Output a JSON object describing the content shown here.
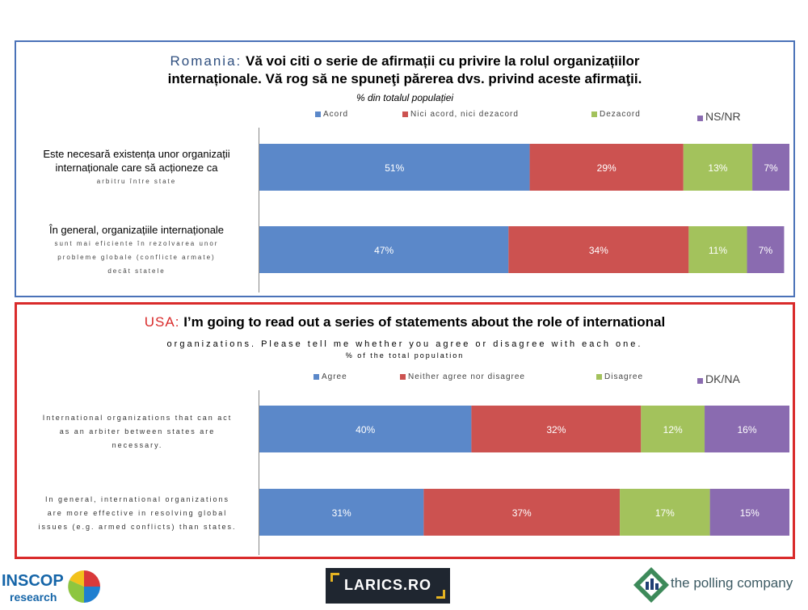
{
  "panels": [
    {
      "id": "ro",
      "title_country": "Romania:",
      "title_line1": "Vă voi citi o serie de afirmații cu privire la rolul organizațiilor",
      "title_line2": "internaționale. Vă rog să ne spuneţi părerea dvs. privind aceste afirmaţii.",
      "subtitle": "% din totalul populației",
      "legend": [
        "Acord",
        "Nici acord, nici dezacord",
        "Dezacord",
        "NS/NR"
      ],
      "categories": [
        [
          "Este necesară existența unor organizații",
          "internaționale care să acționeze ca",
          "arbitru între state"
        ],
        [
          "În general,  organizațiile internaționale",
          "sunt mai eficiente în rezolvarea unor",
          "probleme globale (conflicte armate)",
          "decât statele"
        ]
      ]
    },
    {
      "id": "us",
      "title_country": "USA:",
      "title_line1": "I’m going to read out a series of statements about the role of international",
      "title_line2": "organizations. Please tell me whether you agree or disagree with each one.",
      "subtitle": "% of the total population",
      "legend": [
        "Agree",
        "Neither agree nor disagree",
        "Disagree",
        "DK/NA"
      ],
      "categories": [
        [
          "International organizations that can act",
          "as an arbiter between states are",
          "necessary."
        ],
        [
          "In general, international organizations",
          "are more effective in resolving global",
          "issues (e.g. armed conflicts) than states."
        ]
      ]
    }
  ],
  "chart_data": [
    {
      "type": "bar",
      "orientation": "horizontal",
      "stacked": true,
      "title": "Romania: Vă voi citi o serie de afirmații cu privire la rolul organizațiilor internaționale. Vă rog să ne spuneţi părerea dvs. privind aceste afirmaţii.",
      "subtitle": "% din totalul populației",
      "categories": [
        "Este necesară existența unor organizații internaționale care să acționeze ca arbitru între state",
        "În general,  organizațiile internaționale sunt mai eficiente în rezolvarea unor probleme globale (conflicte armate) decât statele"
      ],
      "series": [
        {
          "name": "Acord",
          "values": [
            51,
            47
          ],
          "color": "#5b88c9"
        },
        {
          "name": "Nici acord, nici dezacord",
          "values": [
            29,
            34
          ],
          "color": "#cc5250"
        },
        {
          "name": "Dezacord",
          "values": [
            13,
            11
          ],
          "color": "#a3c25c"
        },
        {
          "name": "NS/NR",
          "values": [
            7,
            7
          ],
          "color": "#8a6bb0"
        }
      ],
      "data_label_suffix": "%",
      "legend_position": "top"
    },
    {
      "type": "bar",
      "orientation": "horizontal",
      "stacked": true,
      "title": "USA: I’m going to read out a series of statements about the role of international organizations. Please tell me whether you agree or disagree with each one.",
      "subtitle": "% of the total population",
      "categories": [
        "International organizations that can act as an arbiter between states are necessary.",
        "In general, international organizations are more effective in resolving global issues (e.g. armed conflicts) than states."
      ],
      "series": [
        {
          "name": "Agree",
          "values": [
            40,
            31
          ],
          "color": "#5b88c9"
        },
        {
          "name": "Neither agree nor disagree",
          "values": [
            32,
            37
          ],
          "color": "#cc5250"
        },
        {
          "name": "Disagree",
          "values": [
            12,
            17
          ],
          "color": "#a3c25c"
        },
        {
          "name": "DK/NA",
          "values": [
            16,
            15
          ],
          "color": "#8a6bb0"
        }
      ],
      "data_label_suffix": "%",
      "legend_position": "top"
    }
  ],
  "logos": {
    "inscop_line1": "INSCOP",
    "inscop_line2": "research",
    "larics": "LARICS.RO",
    "polling": "the polling company"
  }
}
